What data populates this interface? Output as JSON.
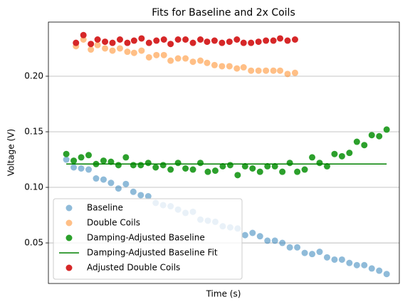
{
  "chart_data": {
    "type": "scatter",
    "title": "Fits for Baseline and 2x Coils",
    "xlabel": "Time (s)",
    "ylabel": "Voltage (V)",
    "xlim": [
      -2.4,
      44.7
    ],
    "ylim": [
      0.0135,
      0.2487
    ],
    "yticks": [
      {
        "value": 0.05,
        "label": "0.05"
      },
      {
        "value": 0.1,
        "label": "0.10"
      },
      {
        "value": 0.15,
        "label": "0.15"
      },
      {
        "value": 0.2,
        "label": "0.20"
      }
    ],
    "grid": "y",
    "legend": "lower left",
    "series": [
      {
        "name": "Baseline",
        "kind": "scatter",
        "color": "#1f77b4",
        "opacity": 0.5,
        "x": [
          0,
          1,
          2,
          3,
          4,
          5,
          6,
          7,
          8,
          9,
          10,
          11,
          12,
          13,
          14,
          15,
          16,
          17,
          18,
          19,
          20,
          21,
          22,
          23,
          24,
          25,
          26,
          27,
          28,
          29,
          30,
          31,
          32,
          33,
          34,
          35,
          36,
          37,
          38,
          39,
          40,
          41,
          42,
          43
        ],
        "values": [
          0.125,
          0.118,
          0.117,
          0.116,
          0.108,
          0.107,
          0.104,
          0.099,
          0.103,
          0.096,
          0.093,
          0.092,
          0.086,
          0.084,
          0.083,
          0.08,
          0.077,
          0.078,
          0.071,
          0.07,
          0.069,
          0.065,
          0.064,
          0.063,
          0.057,
          0.059,
          0.056,
          0.052,
          0.052,
          0.05,
          0.046,
          0.046,
          0.041,
          0.04,
          0.042,
          0.037,
          0.035,
          0.035,
          0.032,
          0.03,
          0.03,
          0.027,
          0.025,
          0.022
        ]
      },
      {
        "name": "Double Coils",
        "kind": "scatter",
        "color": "#ff7f0e",
        "opacity": 0.5,
        "x": [
          1.3,
          2.3,
          3.3,
          4.2,
          5.2,
          6.2,
          7.2,
          8.2,
          9.1,
          10.1,
          11.1,
          12.1,
          13.1,
          14.0,
          15.0,
          16.0,
          17.0,
          18.0,
          18.9,
          19.9,
          20.9,
          21.9,
          22.9,
          23.8,
          24.8,
          25.8,
          26.8,
          27.8,
          28.7,
          29.7,
          30.7
        ],
        "values": [
          0.227,
          0.233,
          0.224,
          0.228,
          0.225,
          0.223,
          0.225,
          0.222,
          0.221,
          0.223,
          0.217,
          0.219,
          0.219,
          0.214,
          0.216,
          0.216,
          0.213,
          0.214,
          0.212,
          0.21,
          0.209,
          0.209,
          0.207,
          0.208,
          0.205,
          0.205,
          0.205,
          0.205,
          0.205,
          0.202,
          0.203
        ]
      },
      {
        "name": "Damping-Adjusted Baseline",
        "kind": "scatter",
        "color": "#2ca02c",
        "opacity": 1,
        "x": [
          0,
          1,
          2,
          3,
          4,
          5,
          6,
          7,
          8,
          9,
          10,
          11,
          12,
          13,
          14,
          15,
          16,
          17,
          18,
          19,
          20,
          21,
          22,
          23,
          24,
          25,
          26,
          27,
          28,
          29,
          30,
          31,
          32,
          33,
          34,
          35,
          36,
          37,
          38,
          39,
          40,
          41,
          42,
          43
        ],
        "values": [
          0.13,
          0.124,
          0.127,
          0.129,
          0.121,
          0.124,
          0.123,
          0.12,
          0.127,
          0.12,
          0.12,
          0.122,
          0.118,
          0.12,
          0.116,
          0.122,
          0.117,
          0.116,
          0.122,
          0.114,
          0.115,
          0.119,
          0.12,
          0.111,
          0.119,
          0.117,
          0.114,
          0.119,
          0.119,
          0.114,
          0.122,
          0.114,
          0.116,
          0.127,
          0.122,
          0.119,
          0.13,
          0.128,
          0.131,
          0.141,
          0.138,
          0.147,
          0.146,
          0.152
        ]
      },
      {
        "name": "Damping-Adjusted Baseline Fit",
        "kind": "line",
        "color": "#008000",
        "opacity": 1,
        "x": [
          0,
          43
        ],
        "values": [
          0.121,
          0.121
        ]
      },
      {
        "name": "Adjusted Double Coils",
        "kind": "scatter",
        "color": "#d62728",
        "opacity": 1,
        "x": [
          1.3,
          2.3,
          3.3,
          4.2,
          5.2,
          6.2,
          7.2,
          8.2,
          9.1,
          10.1,
          11.1,
          12.1,
          13.1,
          14.0,
          15.0,
          16.0,
          17.0,
          18.0,
          18.9,
          19.9,
          20.9,
          21.9,
          22.9,
          23.8,
          24.8,
          25.8,
          26.8,
          27.8,
          28.7,
          29.7,
          30.7
        ],
        "values": [
          0.23,
          0.237,
          0.229,
          0.233,
          0.231,
          0.23,
          0.233,
          0.23,
          0.232,
          0.234,
          0.23,
          0.232,
          0.233,
          0.229,
          0.233,
          0.233,
          0.23,
          0.233,
          0.231,
          0.232,
          0.23,
          0.231,
          0.233,
          0.23,
          0.23,
          0.231,
          0.232,
          0.232,
          0.234,
          0.232,
          0.233
        ]
      }
    ]
  }
}
